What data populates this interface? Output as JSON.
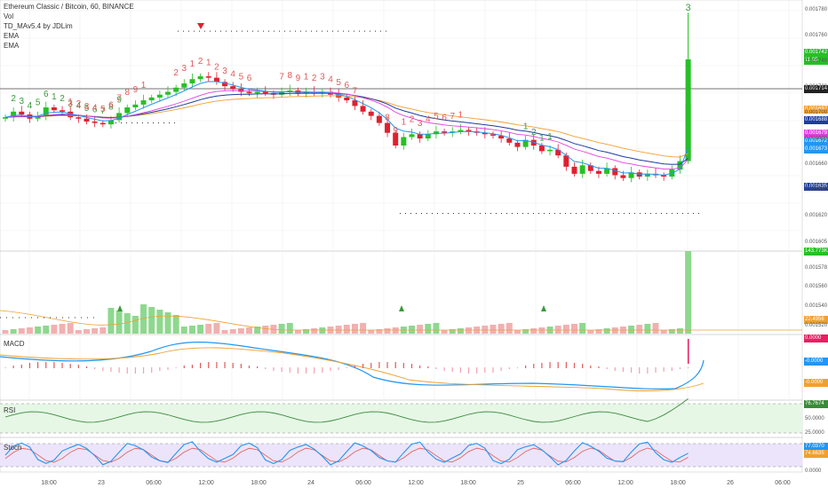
{
  "header": {
    "title": "Ethereum Classic / Bitcoin, 60, BINANCE",
    "indicators": [
      "Vol",
      "TD_MAv5.4 by JDLim",
      "EMA",
      "EMA"
    ]
  },
  "panels": {
    "macd_label": "MACD",
    "rsi_label": "RSI",
    "stoch_label": "Stoch"
  },
  "price_axis": {
    "ticks": [
      "0.001780",
      "0.001760",
      "0.001740",
      "0.001720",
      "0.001700",
      "0.001680",
      "0.001660",
      "0.001640",
      "0.001620",
      "0.001605",
      "0.001578",
      "0.001560",
      "0.001540",
      "0.001520"
    ]
  },
  "price_tags": [
    {
      "text": "0.001742",
      "color": "#26c026"
    },
    {
      "text": "11:05",
      "color": "#26c026"
    },
    {
      "text": "0.001714",
      "color": "#222222"
    },
    {
      "text": "0.001697",
      "color": "#f0a030"
    },
    {
      "text": "0.001688",
      "color": "#1e3c9c"
    },
    {
      "text": "0.001679",
      "color": "#e040e0"
    },
    {
      "text": "0.001672",
      "color": "#2196f3"
    },
    {
      "text": "0.001673",
      "color": "#2196f3"
    },
    {
      "text": "0.001635",
      "color": "#1e3c9c"
    },
    {
      "text": "143.773K",
      "color": "#26c026"
    },
    {
      "text": "22.4956",
      "color": "#f0a030"
    },
    {
      "text": "0.0000",
      "color": "#e91e63"
    },
    {
      "text": "-0.0000",
      "color": "#2196f3"
    },
    {
      "text": "-0.0000",
      "color": "#f0a030"
    },
    {
      "text": "76.7674",
      "color": "#3a8a3a"
    },
    {
      "text": "77.0370",
      "color": "#2196f3"
    },
    {
      "text": "74.6635",
      "color": "#f0a030"
    }
  ],
  "sub_axis": {
    "rsi_50": "50.0000",
    "rsi_25": "25.0000",
    "stoch_0": "0.0000"
  },
  "x_axis": {
    "labels": [
      "18:00",
      "23",
      "06:00",
      "12:00",
      "18:00",
      "24",
      "06:00",
      "12:00",
      "18:00",
      "25",
      "06:00",
      "12:00",
      "18:00",
      "26",
      "06:00"
    ]
  },
  "colors": {
    "up": "#26c026",
    "down": "#e0202e",
    "ema_blue": "#2196f3",
    "ema_navy": "#1e3c9c",
    "ema_pink": "#e040e0",
    "ema_orange": "#f0a030",
    "td_up": "#3a9a3a",
    "td_down": "#e05a5a"
  },
  "chart_data": {
    "type": "candlestick",
    "title": "Ethereum Classic / Bitcoin, 60, BINANCE",
    "closes": [
      1704,
      1708,
      1706,
      1703,
      1705,
      1711,
      1709,
      1708,
      1704,
      1703,
      1701,
      1700,
      1699,
      1702,
      1707,
      1711,
      1713,
      1716,
      1718,
      1720,
      1722,
      1725,
      1728,
      1731,
      1733,
      1732,
      1729,
      1726,
      1724,
      1722,
      1721,
      1722,
      1721,
      1720,
      1722,
      1723,
      1721,
      1722,
      1721,
      1722,
      1720,
      1718,
      1716,
      1712,
      1708,
      1705,
      1700,
      1693,
      1684,
      1690,
      1692,
      1689,
      1692,
      1694,
      1693,
      1694,
      1695,
      1694,
      1693,
      1692,
      1691,
      1689,
      1686,
      1683,
      1688,
      1684,
      1680,
      1681,
      1677,
      1669,
      1664,
      1670,
      1666,
      1664,
      1668,
      1663,
      1661,
      1665,
      1662,
      1664,
      1663,
      1662,
      1667,
      1673,
      1714
    ],
    "td_counts_up": [
      "2",
      "3",
      "4",
      "5",
      "6",
      "1",
      "2",
      "3",
      "4",
      "5",
      "6",
      "7",
      "8",
      "9",
      "1",
      "2",
      "1",
      "1"
    ],
    "td_counts_down": [
      "1",
      "2",
      "3",
      "4",
      "5",
      "6",
      "7",
      "8",
      "9",
      "1",
      "2",
      "3",
      "1",
      "2",
      "1",
      "2",
      "3",
      "4",
      "5",
      "6",
      "7",
      "8",
      "9",
      "1",
      "2",
      "3",
      "4",
      "5",
      "6",
      "7",
      "8",
      "9",
      "1",
      "2",
      "3",
      "4",
      "5",
      "6",
      "7",
      "1"
    ],
    "top_marker": "3",
    "volume_last": "143.773K",
    "rsi_last": "76.7674",
    "stoch_k": "77.0370",
    "stoch_d": "74.6635"
  }
}
